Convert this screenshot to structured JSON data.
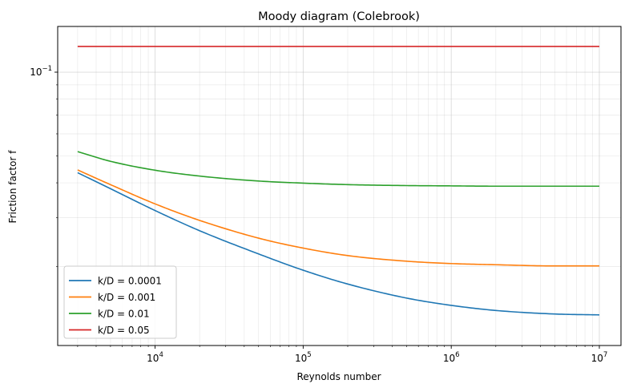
{
  "chart_data": {
    "type": "line",
    "title": "Moody diagram (Colebrook)",
    "xlabel": "Reynolds number",
    "ylabel": "Friction factor f",
    "xscale": "log",
    "yscale": "log",
    "xlim": [
      2200,
      14000000
    ],
    "ylim": [
      0.0104,
      0.146
    ],
    "x_ticks": [
      {
        "value": 10000,
        "base": "10",
        "exp": "4"
      },
      {
        "value": 100000,
        "base": "10",
        "exp": "5"
      },
      {
        "value": 1000000,
        "base": "10",
        "exp": "6"
      },
      {
        "value": 10000000,
        "base": "10",
        "exp": "7"
      }
    ],
    "y_ticks": [
      {
        "value": 0.1,
        "base": "10",
        "exp": "−1"
      }
    ],
    "grid": true,
    "legend_position": "lower-left",
    "x": [
      3000,
      5000,
      10000,
      20000,
      50000,
      100000,
      200000,
      500000,
      1000000,
      2000000,
      5000000,
      10000000
    ],
    "series": [
      {
        "name": "k/D = 0.0001",
        "color": "#1f77b4",
        "values": [
          0.0435,
          0.0381,
          0.0318,
          0.0269,
          0.0222,
          0.0194,
          0.0173,
          0.0154,
          0.0145,
          0.0139,
          0.0135,
          0.0134
        ]
      },
      {
        "name": "k/D = 0.001",
        "color": "#ff7f0e",
        "values": [
          0.0445,
          0.0394,
          0.0336,
          0.0293,
          0.0253,
          0.0233,
          0.0219,
          0.0209,
          0.0205,
          0.0203,
          0.0201,
          0.0201
        ]
      },
      {
        "name": "k/D = 0.01",
        "color": "#2ca02c",
        "values": [
          0.0518,
          0.0478,
          0.0444,
          0.0423,
          0.0406,
          0.0399,
          0.0394,
          0.0391,
          0.039,
          0.0389,
          0.0389,
          0.0389
        ]
      },
      {
        "name": "k/D = 0.05",
        "color": "#d62728",
        "values": [
          0.1237,
          0.1237,
          0.1237,
          0.1237,
          0.1237,
          0.1237,
          0.1237,
          0.1237,
          0.1237,
          0.1237,
          0.1237,
          0.1237
        ]
      }
    ]
  }
}
